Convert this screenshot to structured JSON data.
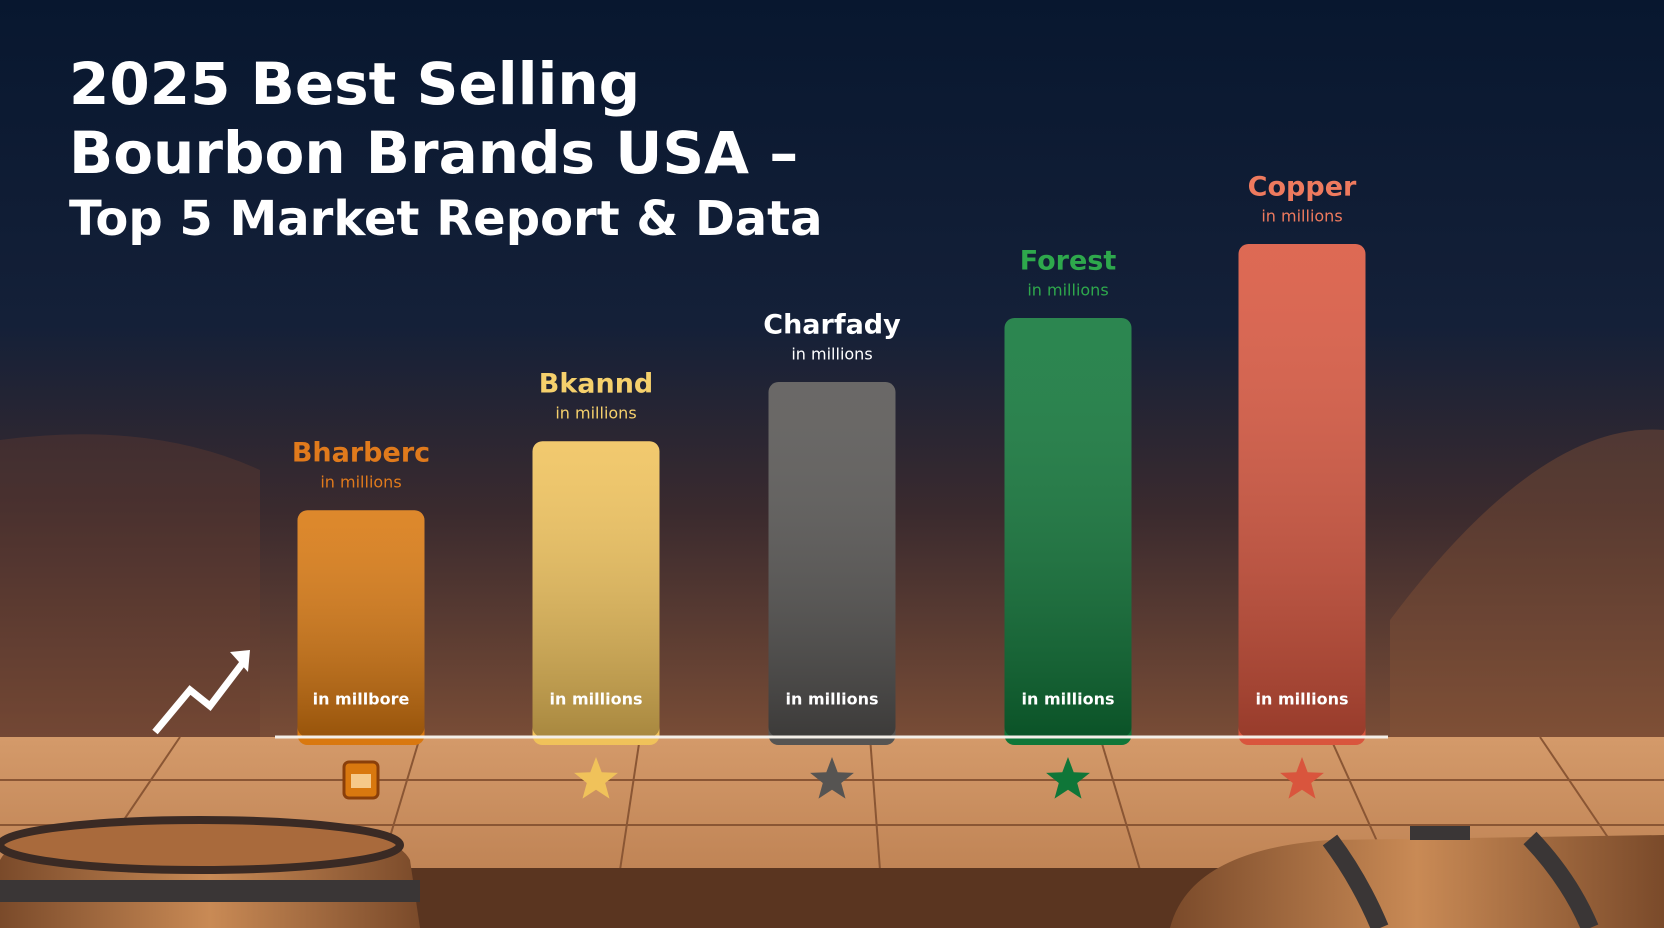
{
  "chart_data": {
    "type": "bar",
    "title": [
      "2025 Best Selling",
      "Bourbon Brands USA –",
      "Top 5 Market Report & Data"
    ],
    "categories": [
      "Bharberc",
      "Bkannd",
      "Charfady",
      "Forest",
      "Copper"
    ],
    "values": [
      46,
      60,
      72,
      85,
      100
    ],
    "unit_labels": [
      "in millions",
      "in millions",
      "in millions",
      "in millions",
      "in millions"
    ],
    "inner_labels": [
      "in millbore",
      "in millions",
      "in millions",
      "in millions",
      "in millions"
    ],
    "colors": [
      "#d9780f",
      "#f0c25a",
      "#565452",
      "#0f7638",
      "#d9553d"
    ],
    "label_colors": [
      "#e07a1c",
      "#f5d06c",
      "#ffffff",
      "#2ea84c",
      "#ee7a5e"
    ]
  }
}
